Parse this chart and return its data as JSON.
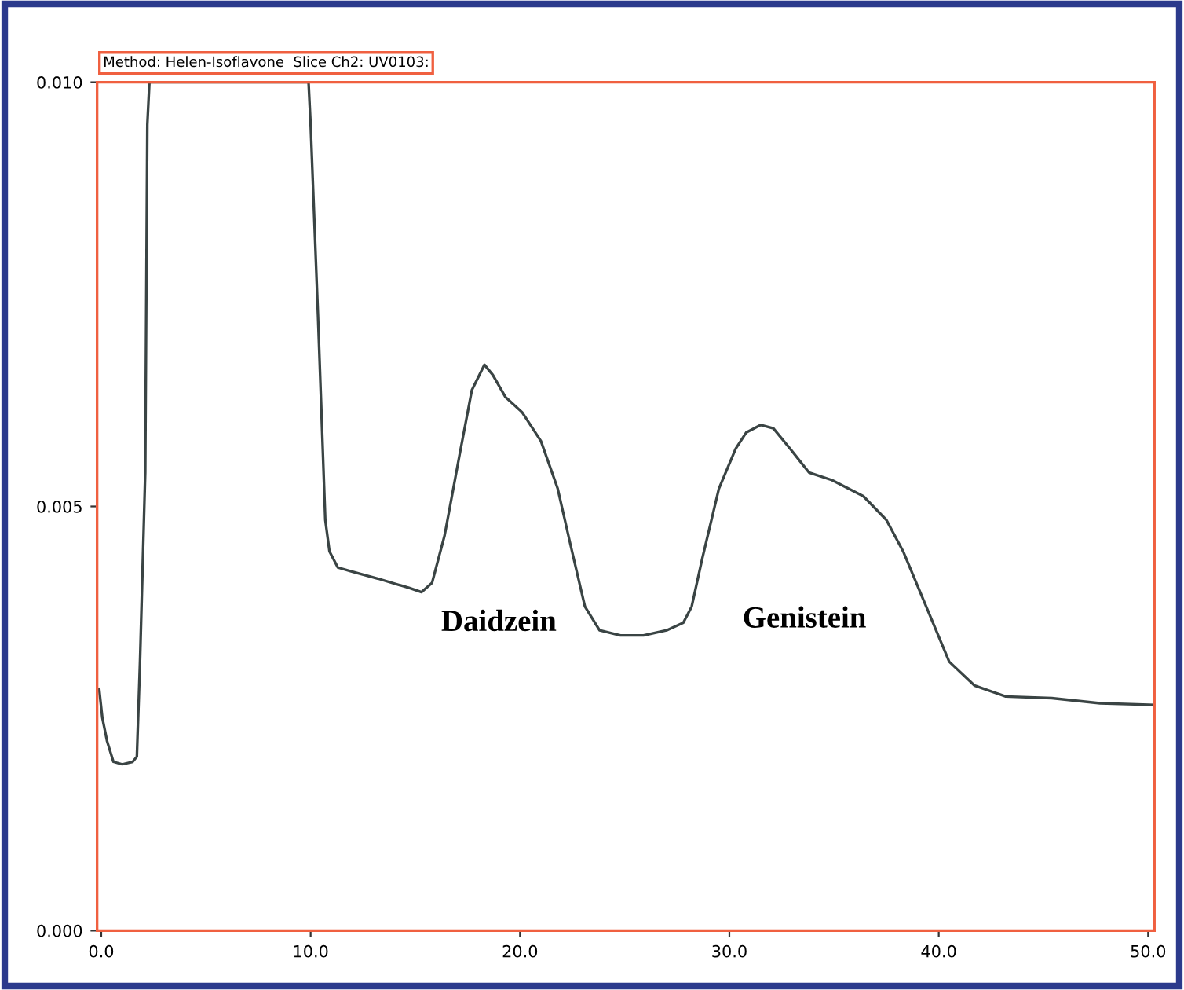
{
  "chart_data": {
    "type": "line",
    "title": "Method: Helen-Isoflavone  Slice Ch2: UV0103:",
    "x": [
      -0.1,
      0.05,
      0.28,
      0.58,
      1.0,
      1.5,
      1.7,
      1.85,
      2.1,
      2.2,
      2.3,
      9.9,
      10.0,
      10.35,
      10.7,
      10.9,
      11.3,
      12.0,
      13.2,
      14.7,
      15.3,
      15.8,
      16.4,
      17.1,
      17.7,
      18.3,
      18.7,
      19.3,
      20.1,
      21.0,
      21.8,
      22.4,
      23.1,
      23.8,
      24.8,
      25.9,
      27.0,
      27.8,
      28.2,
      28.7,
      29.5,
      30.3,
      30.8,
      31.5,
      32.1,
      32.9,
      33.8,
      34.9,
      36.4,
      37.5,
      38.3,
      39.4,
      40.5,
      41.7,
      43.2,
      45.4,
      47.7,
      50.3
    ],
    "series": [
      {
        "color": "#3a4444",
        "values": [
          0.00285,
          0.00251,
          0.00223,
          0.00199,
          0.00196,
          0.00199,
          0.00205,
          0.00317,
          0.0054,
          0.0095,
          0.01,
          0.01,
          0.0095,
          0.00726,
          0.00484,
          0.00447,
          0.00428,
          0.00423,
          0.00415,
          0.00404,
          0.00399,
          0.0041,
          0.00466,
          0.00559,
          0.00637,
          0.00667,
          0.00655,
          0.00629,
          0.00611,
          0.00577,
          0.00521,
          0.00456,
          0.00382,
          0.00354,
          0.00348,
          0.00348,
          0.00354,
          0.00363,
          0.00382,
          0.00438,
          0.00521,
          0.00568,
          0.00587,
          0.00596,
          0.00592,
          0.00568,
          0.0054,
          0.00531,
          0.00512,
          0.00484,
          0.00447,
          0.00382,
          0.00317,
          0.00289,
          0.00276,
          0.00274,
          0.00268,
          0.00266
        ]
      }
    ],
    "xlim": [
      -0.2,
      50.3
    ],
    "ylim": [
      0.0,
      0.01
    ],
    "xticks": [
      {
        "value": 0,
        "label": "0.0"
      },
      {
        "value": 10,
        "label": "10.0"
      },
      {
        "value": 20,
        "label": "20.0"
      },
      {
        "value": 30,
        "label": "30.0"
      },
      {
        "value": 40,
        "label": "40.0"
      },
      {
        "value": 50,
        "label": "50.0"
      }
    ],
    "yticks": [
      {
        "value": 0,
        "label": "0.000"
      },
      {
        "value": 0.005,
        "label": "0.005"
      },
      {
        "value": 0.01,
        "label": "0.010"
      }
    ],
    "annotations": [
      "Daidzein",
      "Genistein"
    ],
    "grid": false,
    "legend": false,
    "marker": "none",
    "line_style": "solid"
  }
}
